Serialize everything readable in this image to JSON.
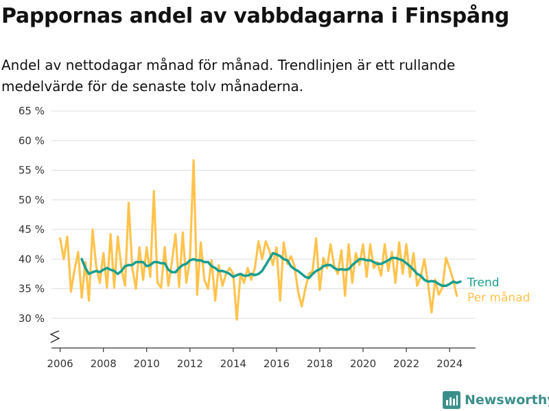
{
  "title": "Pappornas andel av vabbdagarna i Finspång",
  "subtitle": "Andel av nettodagar månad för månad. Trendlinjen är ett rullande medelvärde för de senaste tolv månaderna.",
  "brand": "Newsworthy",
  "colors": {
    "trend": "#1a9e8e",
    "monthly": "#ffc34d",
    "grid": "#dddddd",
    "axis": "#333333",
    "logo": "#3b8f8a"
  },
  "chart_data": {
    "type": "line",
    "ylim": [
      25,
      65
    ],
    "yticks": [
      30,
      35,
      40,
      45,
      50,
      55,
      60,
      65
    ],
    "ytick_labels": [
      "30 %",
      "35 %",
      "40 %",
      "45 %",
      "50 %",
      "55 %",
      "60 %",
      "65 %"
    ],
    "xlim": [
      2005.6,
      2025.2
    ],
    "xticks": [
      2006,
      2008,
      2010,
      2012,
      2014,
      2016,
      2018,
      2020,
      2022,
      2024
    ],
    "xtick_labels": [
      "2006",
      "2008",
      "2010",
      "2012",
      "2014",
      "2016",
      "2018",
      "2020",
      "2022",
      "2024"
    ],
    "y_axis_break": true,
    "legend_placement": "right-end",
    "series": [
      {
        "name": "Per månad",
        "x": [
          2006.0,
          2006.167,
          2006.333,
          2006.5,
          2006.667,
          2006.833,
          2007.0,
          2007.167,
          2007.333,
          2007.5,
          2007.667,
          2007.833,
          2008.0,
          2008.167,
          2008.333,
          2008.5,
          2008.667,
          2008.833,
          2009.0,
          2009.167,
          2009.333,
          2009.5,
          2009.667,
          2009.833,
          2010.0,
          2010.167,
          2010.333,
          2010.5,
          2010.667,
          2010.833,
          2011.0,
          2011.167,
          2011.333,
          2011.5,
          2011.667,
          2011.833,
          2012.0,
          2012.167,
          2012.333,
          2012.5,
          2012.667,
          2012.833,
          2013.0,
          2013.167,
          2013.333,
          2013.5,
          2013.667,
          2013.833,
          2014.0,
          2014.167,
          2014.333,
          2014.5,
          2014.667,
          2014.833,
          2015.0,
          2015.167,
          2015.333,
          2015.5,
          2015.667,
          2015.833,
          2016.0,
          2016.167,
          2016.333,
          2016.5,
          2016.667,
          2016.833,
          2017.0,
          2017.167,
          2017.333,
          2017.5,
          2017.667,
          2017.833,
          2018.0,
          2018.167,
          2018.333,
          2018.5,
          2018.667,
          2018.833,
          2019.0,
          2019.167,
          2019.333,
          2019.5,
          2019.667,
          2019.833,
          2020.0,
          2020.167,
          2020.333,
          2020.5,
          2020.667,
          2020.833,
          2021.0,
          2021.167,
          2021.333,
          2021.5,
          2021.667,
          2021.833,
          2022.0,
          2022.167,
          2022.333,
          2022.5,
          2022.667,
          2022.833,
          2023.0,
          2023.167,
          2023.333,
          2023.5,
          2023.667,
          2023.833,
          2024.0,
          2024.167,
          2024.333
        ],
        "values": [
          43.5,
          40.0,
          43.8,
          34.5,
          38.2,
          41.2,
          33.5,
          39.5,
          33.0,
          45.0,
          38.8,
          36.0,
          41.0,
          35.2,
          44.2,
          35.2,
          43.8,
          38.5,
          35.5,
          49.5,
          38.5,
          35.0,
          42.0,
          36.5,
          42.0,
          37.0,
          51.5,
          36.0,
          35.2,
          42.0,
          35.5,
          39.5,
          44.2,
          35.3,
          44.5,
          36.0,
          40.0,
          56.7,
          34.0,
          42.8,
          36.5,
          35.0,
          39.8,
          33.0,
          39.0,
          35.5,
          37.5,
          38.5,
          37.5,
          29.8,
          37.5,
          36.0,
          38.5,
          36.5,
          38.5,
          43.0,
          40.0,
          43.0,
          41.5,
          39.0,
          42.0,
          33.0,
          42.8,
          39.2,
          40.5,
          38.8,
          34.5,
          32.0,
          35.0,
          37.5,
          38.0,
          43.5,
          34.8,
          40.2,
          38.5,
          42.5,
          38.8,
          37.5,
          41.5,
          33.8,
          42.5,
          36.0,
          41.0,
          39.0,
          42.5,
          37.0,
          42.5,
          38.5,
          39.5,
          37.2,
          42.5,
          38.0,
          41.2,
          36.0,
          42.8,
          37.5,
          42.5,
          37.0,
          41.0,
          35.5,
          37.0,
          40.0,
          36.0,
          31.0,
          36.5,
          34.0,
          35.2,
          40.2,
          38.5,
          36.5,
          33.8
        ]
      },
      {
        "name": "Trend",
        "x": [
          2007.0,
          2007.167,
          2007.333,
          2007.5,
          2007.667,
          2007.833,
          2008.0,
          2008.167,
          2008.333,
          2008.5,
          2008.667,
          2008.833,
          2009.0,
          2009.167,
          2009.333,
          2009.5,
          2009.667,
          2009.833,
          2010.0,
          2010.167,
          2010.333,
          2010.5,
          2010.667,
          2010.833,
          2011.0,
          2011.167,
          2011.333,
          2011.5,
          2011.667,
          2011.833,
          2012.0,
          2012.167,
          2012.333,
          2012.5,
          2012.667,
          2012.833,
          2013.0,
          2013.167,
          2013.333,
          2013.5,
          2013.667,
          2013.833,
          2014.0,
          2014.167,
          2014.333,
          2014.5,
          2014.667,
          2014.833,
          2015.0,
          2015.167,
          2015.333,
          2015.5,
          2015.667,
          2015.833,
          2016.0,
          2016.167,
          2016.333,
          2016.5,
          2016.667,
          2016.833,
          2017.0,
          2017.167,
          2017.333,
          2017.5,
          2017.667,
          2017.833,
          2018.0,
          2018.167,
          2018.333,
          2018.5,
          2018.667,
          2018.833,
          2019.0,
          2019.167,
          2019.333,
          2019.5,
          2019.667,
          2019.833,
          2020.0,
          2020.167,
          2020.333,
          2020.5,
          2020.667,
          2020.833,
          2021.0,
          2021.167,
          2021.333,
          2021.5,
          2021.667,
          2021.833,
          2022.0,
          2022.167,
          2022.333,
          2022.5,
          2022.667,
          2022.833,
          2023.0,
          2023.167,
          2023.333,
          2023.5,
          2023.667,
          2023.833,
          2024.0,
          2024.167,
          2024.333,
          2024.5
        ],
        "values": [
          40.0,
          38.5,
          37.5,
          37.8,
          38.0,
          37.8,
          38.2,
          38.5,
          38.2,
          38.0,
          37.5,
          38.0,
          38.8,
          39.0,
          39.0,
          39.5,
          39.5,
          39.5,
          38.8,
          39.0,
          39.5,
          39.5,
          39.3,
          39.3,
          38.2,
          37.8,
          37.8,
          38.5,
          39.0,
          39.2,
          39.8,
          40.0,
          39.8,
          39.8,
          39.5,
          39.5,
          38.8,
          38.5,
          38.0,
          38.0,
          37.8,
          37.5,
          37.0,
          37.3,
          37.5,
          37.2,
          37.2,
          37.5,
          37.3,
          37.5,
          38.0,
          39.0,
          40.0,
          41.0,
          40.8,
          40.5,
          40.0,
          39.8,
          38.8,
          38.3,
          38.0,
          37.5,
          37.0,
          36.8,
          37.5,
          38.0,
          38.3,
          38.8,
          39.0,
          39.0,
          38.5,
          38.2,
          38.3,
          38.2,
          38.3,
          39.0,
          39.5,
          40.0,
          40.0,
          39.8,
          39.8,
          39.5,
          39.2,
          39.2,
          39.5,
          39.8,
          40.2,
          40.2,
          40.0,
          39.8,
          39.3,
          38.8,
          38.2,
          37.5,
          37.2,
          36.5,
          36.2,
          36.3,
          36.2,
          35.8,
          35.5,
          35.5,
          35.8,
          36.2,
          36.0,
          36.2
        ]
      }
    ]
  }
}
